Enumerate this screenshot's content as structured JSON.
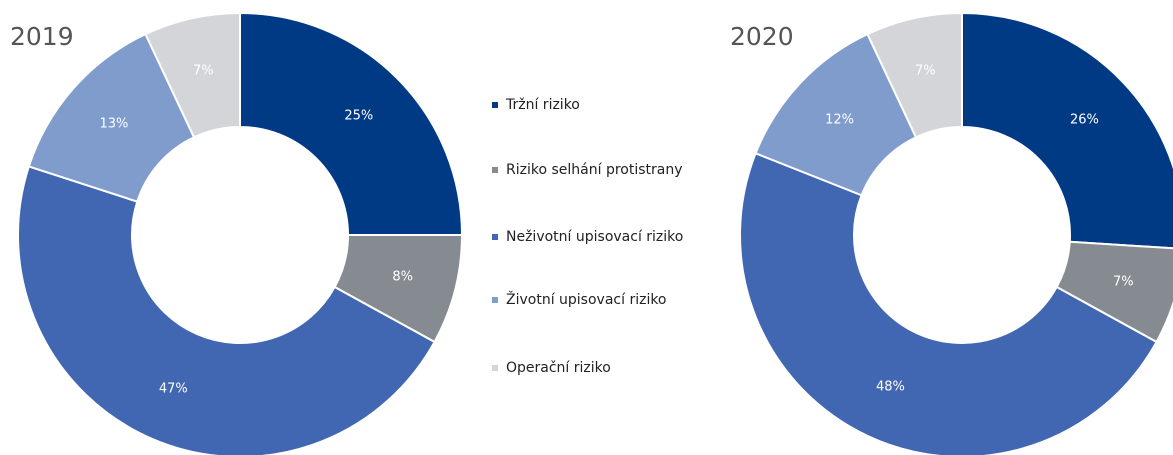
{
  "chart_data": [
    {
      "type": "pie",
      "title": "2019",
      "values": [
        25,
        8,
        47,
        13,
        7
      ],
      "value_labels": [
        "25%",
        "8%",
        "47%",
        "13%",
        "7%"
      ]
    },
    {
      "type": "pie",
      "title": "2020",
      "values": [
        26,
        7,
        48,
        12,
        7
      ],
      "value_labels": [
        "26%",
        "7%",
        "48%",
        "12%",
        "7%"
      ]
    }
  ],
  "legend": {
    "labels": [
      "Tržní riziko",
      "Riziko selhání protistrany",
      "Neživotní upisovací riziko",
      "Životní upisovací riziko",
      "Operační riziko"
    ],
    "colors": [
      "#003a85",
      "#868b91",
      "#4267b2",
      "#7f9ccd",
      "#d3d5d8"
    ]
  }
}
